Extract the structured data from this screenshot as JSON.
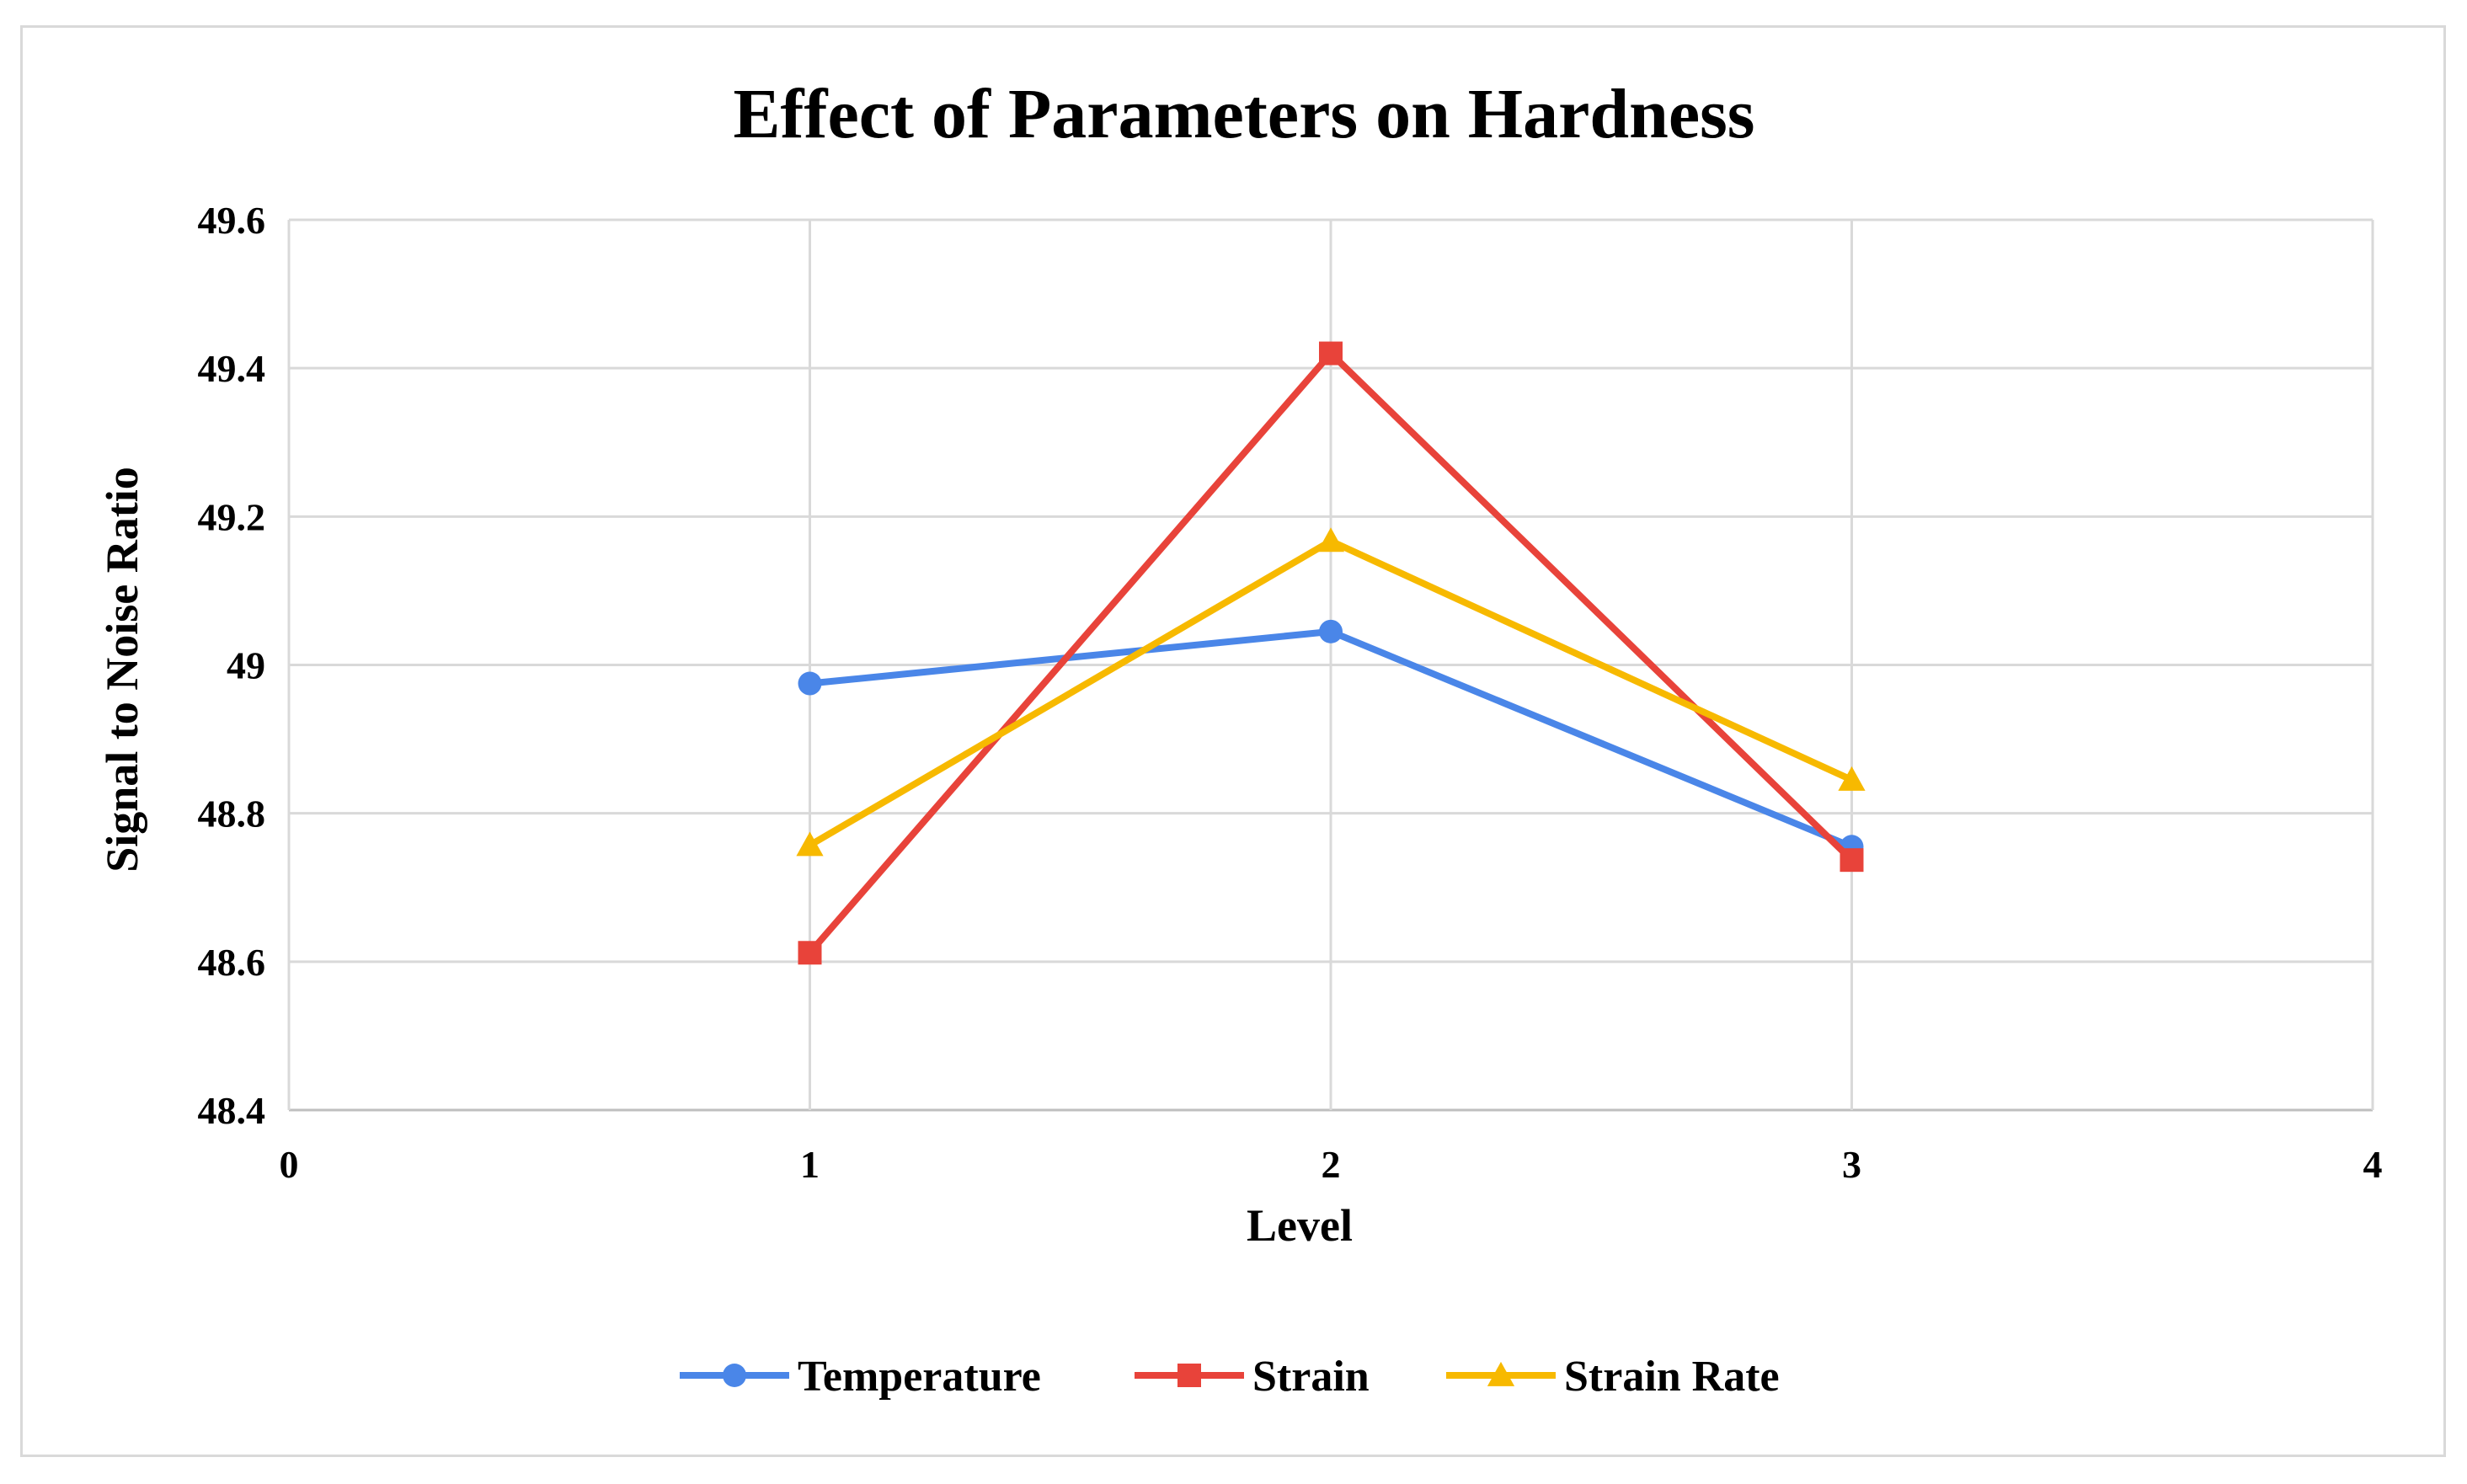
{
  "chart_data": {
    "type": "line",
    "title": "Effect of Parameters on Hardness",
    "xlabel": "Level",
    "ylabel": "Signal to Noise Ratio",
    "xlim": [
      0,
      4
    ],
    "ylim": [
      48.4,
      49.6
    ],
    "x_ticks": [
      "0",
      "1",
      "2",
      "3",
      "4"
    ],
    "y_ticks": [
      "48.4",
      "48.6",
      "48.8",
      "49",
      "49.2",
      "49.4",
      "49.6"
    ],
    "grid": true,
    "legend_position": "bottom",
    "x": [
      1,
      2,
      3
    ],
    "series": [
      {
        "name": "Temperature",
        "values": [
          48.975,
          49.045,
          48.755
        ],
        "color": "#4a86e8",
        "marker": "circle"
      },
      {
        "name": "Strain",
        "values": [
          48.612,
          49.42,
          48.737
        ],
        "color": "#e8433a",
        "marker": "square"
      },
      {
        "name": "Strain Rate",
        "values": [
          48.757,
          49.167,
          48.845
        ],
        "color": "#f7b900",
        "marker": "triangle"
      }
    ]
  }
}
